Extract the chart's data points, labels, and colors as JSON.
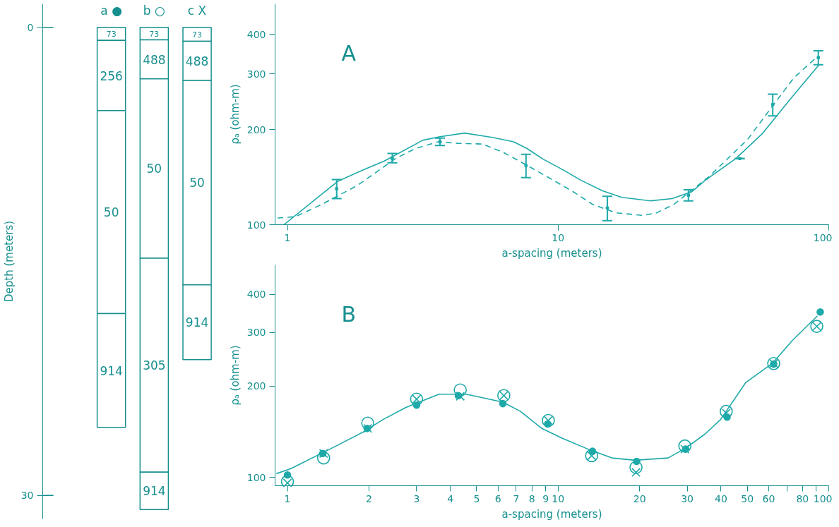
{
  "chart_data": [
    {
      "type": "bar",
      "stacked": true,
      "categories": [
        "a ●",
        "b ○",
        "c X"
      ],
      "ylabel": "Depth (meters)",
      "ylim": [
        31.5,
        -1.5
      ],
      "yticks": [
        0,
        30
      ],
      "series": [
        {
          "color": "#ffffff",
          "values": [
            0.84,
            0.8,
            0.9
          ]
        },
        {
          "color": "#ffffff",
          "values": [
            4.5,
            2.5,
            2.5
          ]
        },
        {
          "color": "#ffffff",
          "values": [
            13.0,
            11.5,
            13.1
          ]
        },
        {
          "color": "#ffffff",
          "values": [
            7.3,
            13.7,
            4.8
          ]
        },
        {
          "color": "#ffffff",
          "values": [
            null,
            2.4,
            null
          ]
        }
      ],
      "annotations": [
        "73",
        "256",
        "50",
        "914",
        "73",
        "488",
        "50",
        "305",
        "914",
        "73",
        "488",
        "50",
        "914"
      ]
    },
    {
      "type": "line",
      "title": "A",
      "xlabel": "a-spacing (meters)",
      "ylabel": "ρₐ (ohm-m)",
      "log": "xy",
      "xlim": [
        0.9,
        100
      ],
      "ylim": [
        100,
        500
      ],
      "xticks": [
        1,
        10,
        100
      ],
      "yticks": [
        100,
        200,
        300,
        400
      ],
      "series": [
        {
          "type": "line",
          "line_style": "solid",
          "color": "#1fa9a9",
          "x": [
            0.97,
            1.34,
            1.53,
            1.9,
            2.28,
            3.16,
            3.66,
            4.51,
            5.71,
            6.85,
            7.69,
            8.83,
            10.3,
            12.2,
            14.6,
            17.2,
            22.0,
            26.4,
            28.6,
            31.1,
            34.9,
            45.4,
            57.1,
            71.9,
            92.1
          ],
          "values": [
            100,
            125,
            137,
            149,
            159,
            185,
            190,
            195,
            189,
            183,
            174,
            161,
            150,
            138,
            128,
            122,
            119,
            121,
            124,
            127,
            138,
            162,
            195,
            249,
            321
          ]
        },
        {
          "type": "line",
          "line_style": "dashed",
          "color": "#1fa9a9",
          "x": [
            0.92,
            1.07,
            1.34,
            1.81,
            2.51,
            2.96,
            3.61,
            4.25,
            5.26,
            6.31,
            7.69,
            9.36,
            11.4,
            13.4,
            16.4,
            20.6,
            23.1,
            26.8,
            30.6,
            36.1,
            50.1,
            62.1,
            74.4,
            90.6
          ],
          "values": [
            105,
            106,
            116,
            133,
            162,
            174,
            183,
            181,
            180,
            169,
            154,
            140,
            127,
            116,
            109,
            107,
            109,
            116,
            127,
            142,
            186,
            238,
            292,
            340
          ]
        },
        {
          "type": "scatter",
          "marker": "square",
          "color": "#1fa9a9",
          "x": [
            1.52,
            2.44,
            3.66,
            7.61,
            15.2,
            30.3,
            46.9,
            62.1,
            91.5
          ],
          "values": [
            130,
            162,
            183,
            154,
            113,
            124,
            162,
            240,
            338
          ],
          "errors": [
            [
              121,
              139
            ],
            [
              157,
              168
            ],
            [
              178,
              188
            ],
            [
              141,
              167
            ],
            [
              103,
              123
            ],
            [
              119,
              129
            ],
            [
              162,
              162
            ],
            [
              221,
              259
            ],
            [
              321,
              355
            ]
          ]
        }
      ]
    },
    {
      "type": "line",
      "title": "B",
      "xlabel": "a-spacing (meters)",
      "ylabel": "ρₐ (ohm-m)",
      "log": "xy",
      "xlim": [
        0.9,
        100
      ],
      "ylim": [
        94,
        500
      ],
      "xticks": [
        1,
        2,
        3,
        4,
        5,
        6,
        7,
        8,
        9,
        10,
        20,
        30,
        40,
        50,
        60,
        {
          "value": 70,
          "label": null
        },
        80,
        {
          "value": 90,
          "label": null
        },
        100
      ],
      "yticks": [
        100,
        200,
        300,
        400
      ],
      "series": [
        {
          "type": "line",
          "line_style": "solid",
          "color": "#1fa9a9",
          "x": [
            0.91,
            1.03,
            1.46,
            1.9,
            2.25,
            2.74,
            3.63,
            4.57,
            6.25,
            7.26,
            8.71,
            10.3,
            12.9,
            15.8,
            19.2,
            25.5,
            29.6,
            34.9,
            39.8,
            49.3,
            62.1,
            73.3,
            90.8
          ],
          "values": [
            103,
            107,
            125,
            141,
            155,
            170,
            188,
            188,
            177,
            165,
            145,
            135,
            124,
            116,
            114,
            116,
            125,
            139,
            155,
            205,
            238,
            282,
            340
          ]
        },
        {
          "type": "scatter",
          "marker": "circle",
          "color": "#1fa9a9",
          "x": [
            1.0,
            1.35,
            1.97,
            3.0,
            4.28,
            6.25,
            9.15,
            13.4,
            19.5,
            29.6,
            42.1,
            62.6,
            93.0
          ],
          "values": [
            102,
            120,
            145,
            173,
            186,
            175,
            150,
            122,
            113,
            124,
            158,
            236,
            350
          ]
        },
        {
          "type": "scatter",
          "marker": "circle",
          "color": "#1fa9a9",
          "x": [
            1.0,
            1.36,
            1.98,
            3.0,
            4.35,
            6.3,
            9.2,
            13.3,
            19.4,
            29.4,
            41.8,
            62.6,
            90.3
          ],
          "values": [
            97,
            116,
            151,
            181,
            194,
            186,
            154,
            118,
            108,
            127,
            165,
            237,
            314
          ]
        },
        {
          "type": "scatter",
          "marker": "cross",
          "color": "#1fa9a9",
          "x": [
            1.0,
            1.36,
            1.98,
            3.0,
            4.35,
            6.3,
            9.2,
            13.3,
            19.4,
            29.4,
            41.8,
            62.6,
            90.3
          ],
          "values": [
            96,
            120,
            145,
            181,
            185,
            186,
            154,
            118,
            104,
            124,
            163,
            237,
            314
          ]
        }
      ]
    }
  ]
}
